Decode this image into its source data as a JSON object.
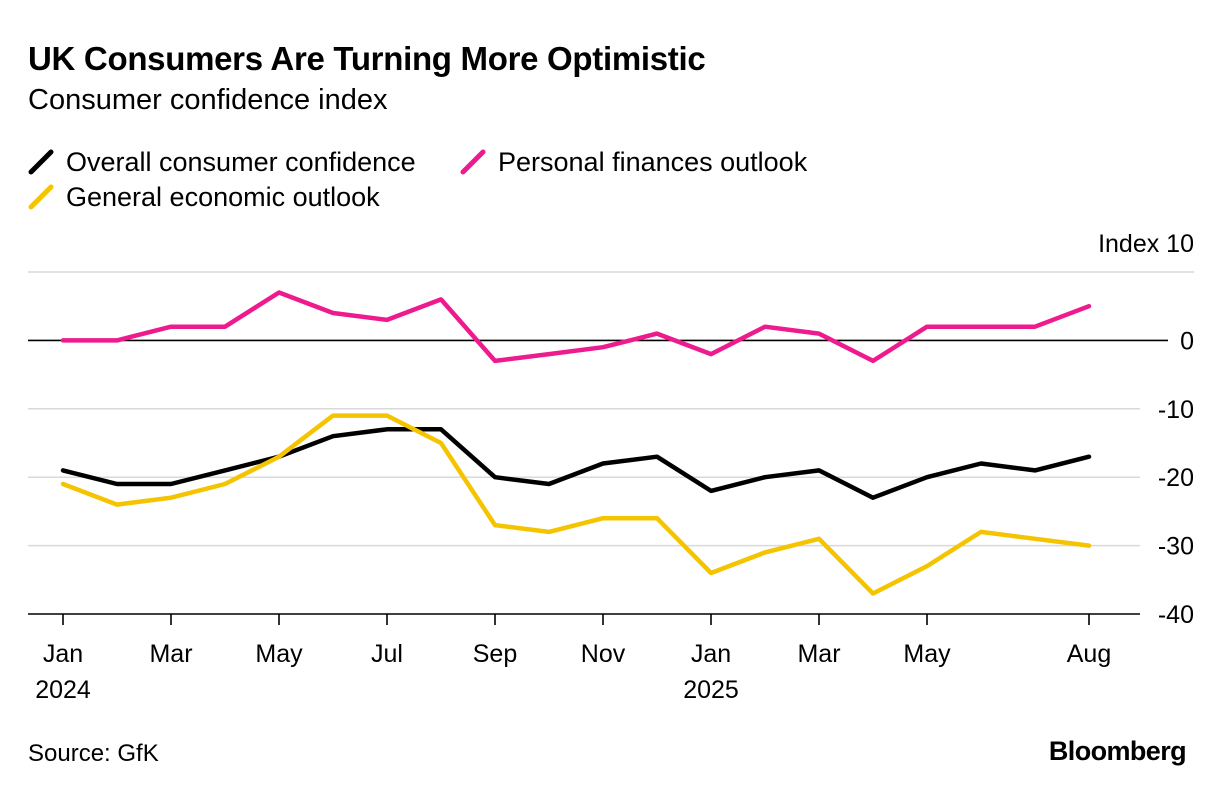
{
  "header": {
    "title": "UK Consumers Are Turning More Optimistic",
    "subtitle": "Consumer confidence index"
  },
  "legend": {
    "items": [
      {
        "label": "Overall consumer confidence",
        "color": "#000000"
      },
      {
        "label": "Personal finances outlook",
        "color": "#ee1b8e"
      },
      {
        "label": "General economic outlook",
        "color": "#f5c400"
      }
    ]
  },
  "footer": {
    "source": "Source: GfK",
    "brand": "Bloomberg"
  },
  "chart_data": {
    "type": "line",
    "title": "UK Consumers Are Turning More Optimistic",
    "subtitle": "Consumer confidence index",
    "ylabel": "Index",
    "y_axis_position": "right",
    "ylim": [
      -40,
      10
    ],
    "yticks": [
      10,
      0,
      -10,
      -20,
      -30,
      -40
    ],
    "ytick_labels": [
      "Index 10",
      "0",
      "-10",
      "-20",
      "-30",
      "-40"
    ],
    "grid": true,
    "legend_position": "top-left",
    "x": [
      "2024-01",
      "2024-02",
      "2024-03",
      "2024-04",
      "2024-05",
      "2024-06",
      "2024-07",
      "2024-08",
      "2024-09",
      "2024-10",
      "2024-11",
      "2024-12",
      "2025-01",
      "2025-02",
      "2025-03",
      "2025-04",
      "2025-05",
      "2025-06",
      "2025-07",
      "2025-08"
    ],
    "xticks": [
      {
        "x": "2024-01",
        "label": "Jan",
        "year": "2024"
      },
      {
        "x": "2024-03",
        "label": "Mar",
        "year": ""
      },
      {
        "x": "2024-05",
        "label": "May",
        "year": ""
      },
      {
        "x": "2024-07",
        "label": "Jul",
        "year": ""
      },
      {
        "x": "2024-09",
        "label": "Sep",
        "year": ""
      },
      {
        "x": "2024-11",
        "label": "Nov",
        "year": ""
      },
      {
        "x": "2025-01",
        "label": "Jan",
        "year": "2025"
      },
      {
        "x": "2025-03",
        "label": "Mar",
        "year": ""
      },
      {
        "x": "2025-05",
        "label": "May",
        "year": ""
      },
      {
        "x": "2025-08",
        "label": "Aug",
        "year": ""
      }
    ],
    "series": [
      {
        "name": "Personal finances outlook",
        "color": "#ee1b8e",
        "values": [
          0,
          0,
          2,
          2,
          7,
          4,
          3,
          6,
          -3,
          -2,
          -1,
          1,
          -2,
          2,
          1,
          -3,
          2,
          2,
          2,
          5
        ]
      },
      {
        "name": "Overall consumer confidence",
        "color": "#000000",
        "values": [
          -19,
          -21,
          -21,
          -19,
          -17,
          -14,
          -13,
          -13,
          -20,
          -21,
          -18,
          -17,
          -22,
          -20,
          -19,
          -23,
          -20,
          -18,
          -19,
          -17
        ]
      },
      {
        "name": "General economic outlook",
        "color": "#f5c400",
        "values": [
          -21,
          -24,
          -23,
          -21,
          -17,
          -11,
          -11,
          -15,
          -27,
          -28,
          -26,
          -26,
          -34,
          -31,
          -29,
          -37,
          -33,
          -28,
          -29,
          -30
        ]
      }
    ]
  }
}
